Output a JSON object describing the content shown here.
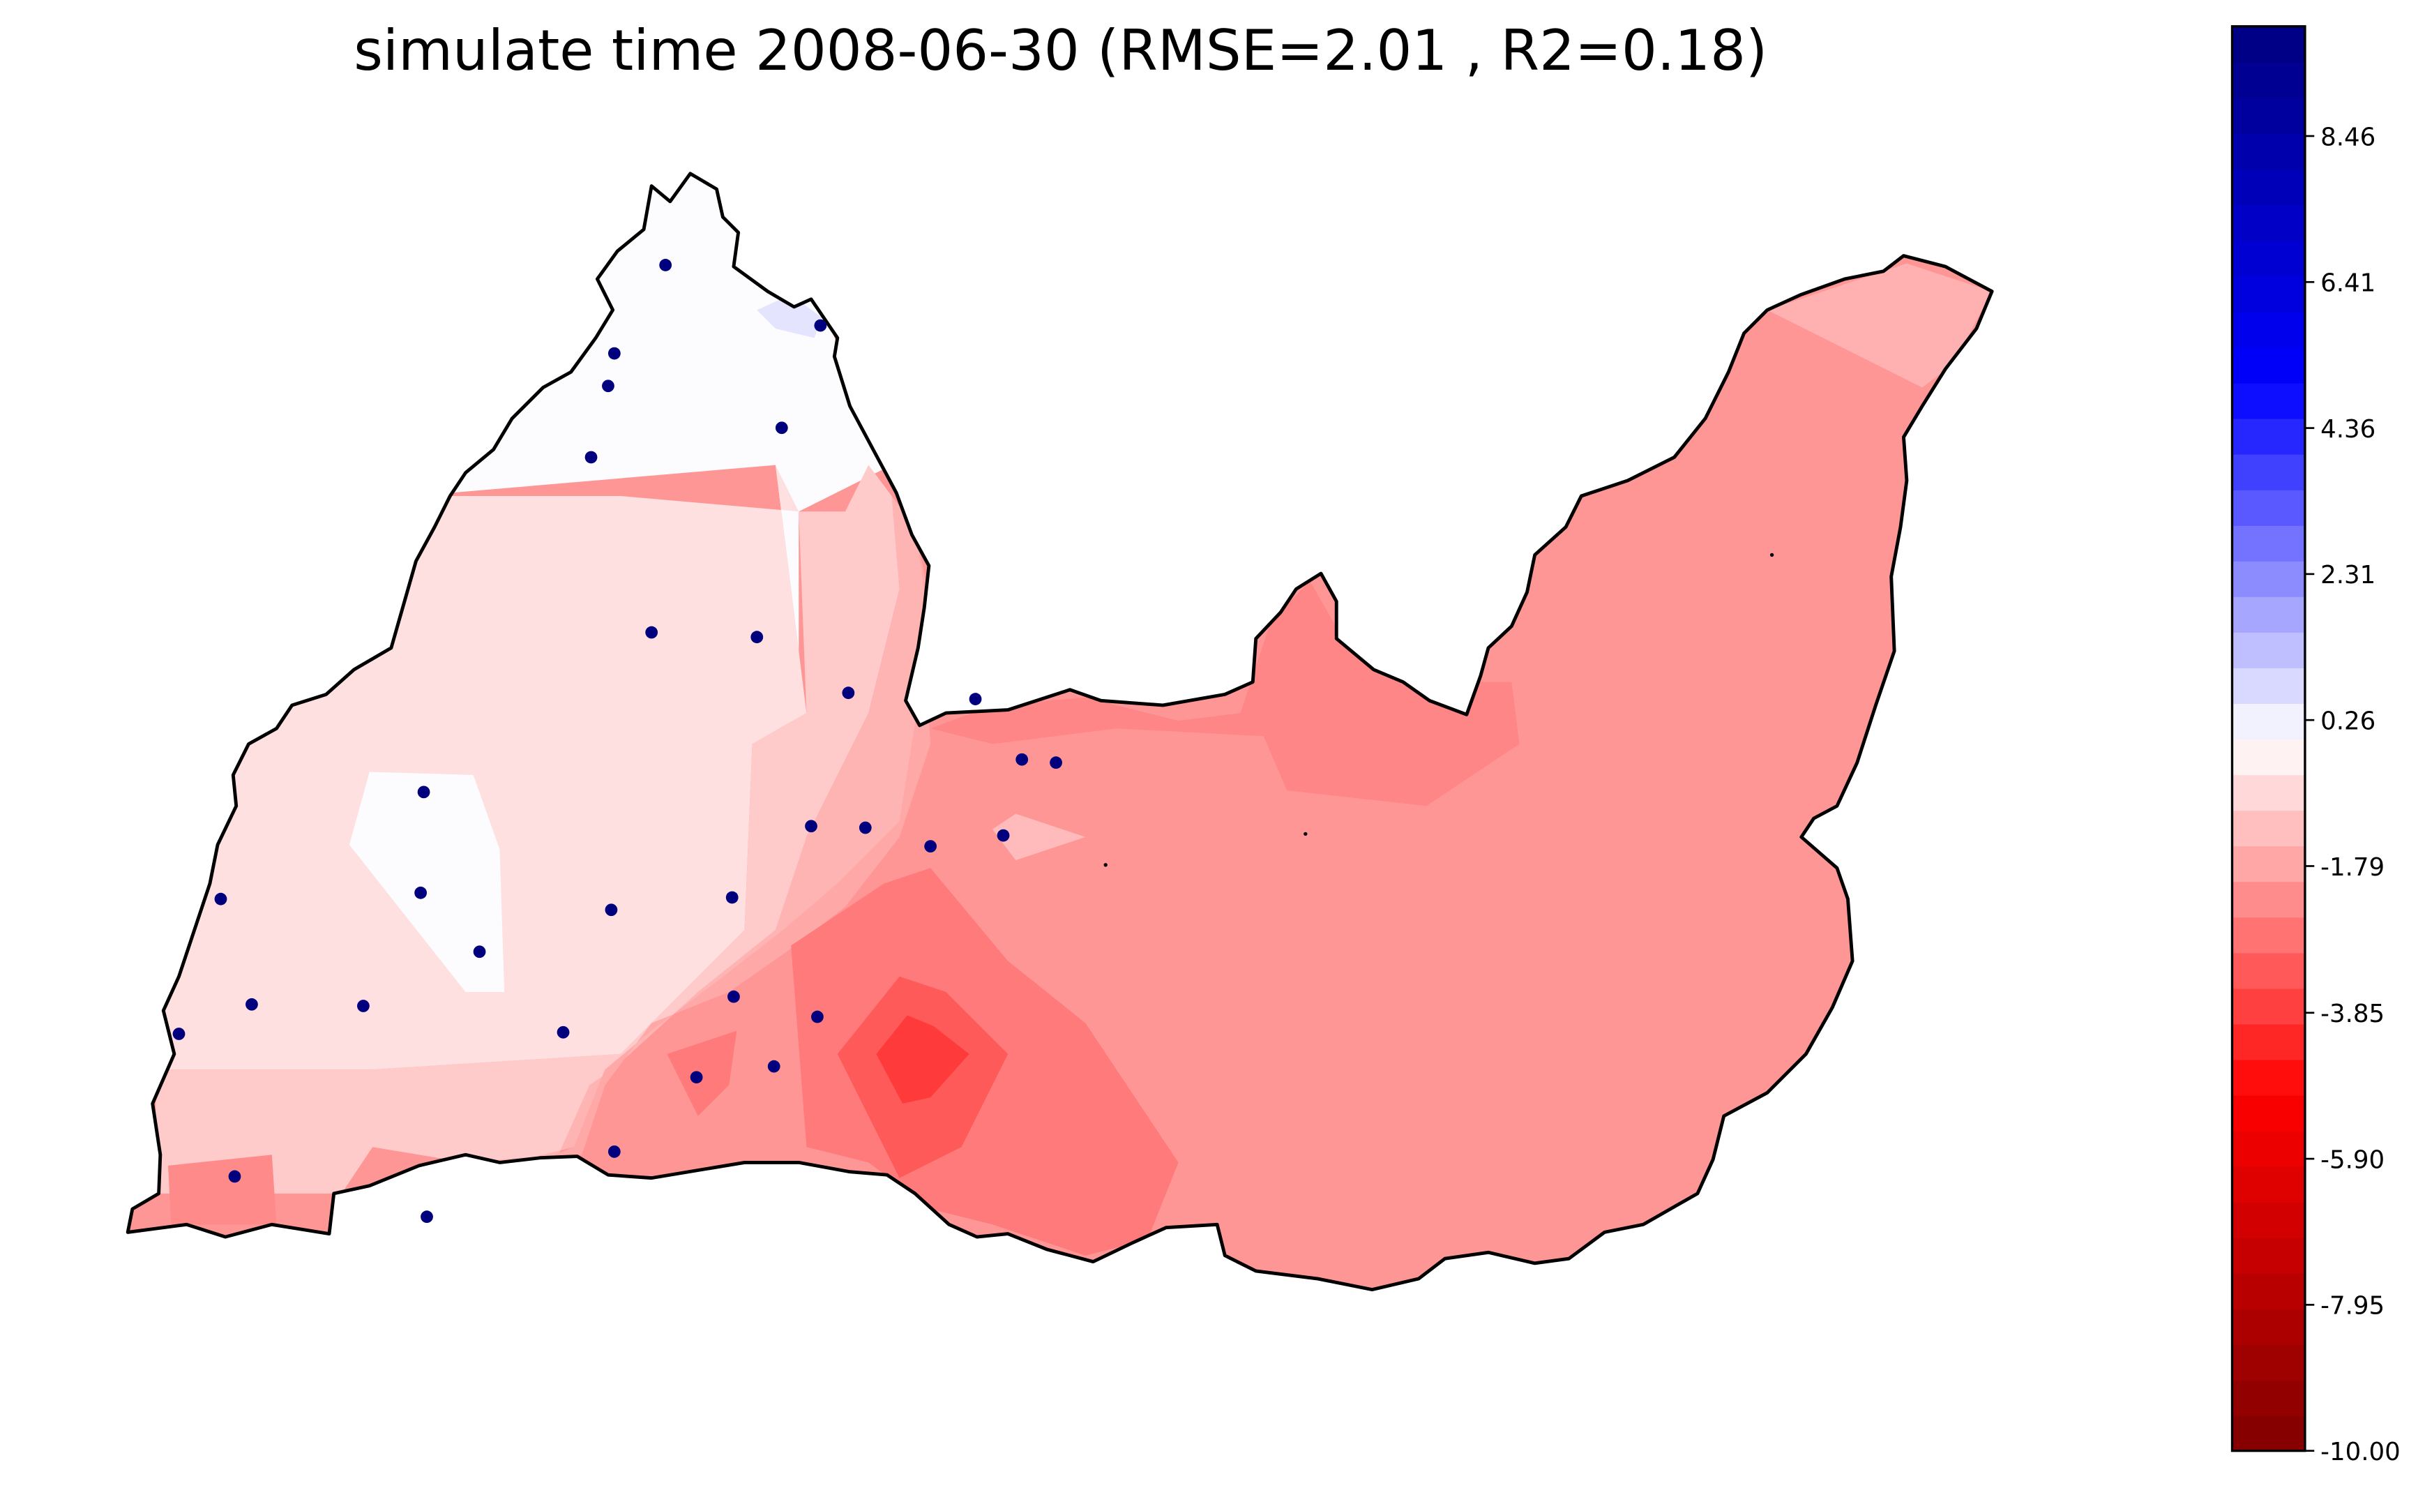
{
  "title": "simulate time 2008-06-30 (RMSE=2.01 , R2=0.18)",
  "map": {
    "station_color": "#00007f",
    "outline_color": "#000000",
    "stations": [
      {
        "id": "s1"
      },
      {
        "id": "s2"
      },
      {
        "id": "s3"
      },
      {
        "id": "s4"
      },
      {
        "id": "s5"
      },
      {
        "id": "s6"
      },
      {
        "id": "s7"
      },
      {
        "id": "s8"
      },
      {
        "id": "s9"
      },
      {
        "id": "s10"
      },
      {
        "id": "s11"
      },
      {
        "id": "s12"
      },
      {
        "id": "s13"
      },
      {
        "id": "s14"
      },
      {
        "id": "s15"
      },
      {
        "id": "s16"
      },
      {
        "id": "s17"
      },
      {
        "id": "s18"
      },
      {
        "id": "s19"
      },
      {
        "id": "s20"
      },
      {
        "id": "s21"
      },
      {
        "id": "s22"
      },
      {
        "id": "s23"
      },
      {
        "id": "s24"
      },
      {
        "id": "s25"
      },
      {
        "id": "s26"
      },
      {
        "id": "s27"
      },
      {
        "id": "s28"
      },
      {
        "id": "s29"
      },
      {
        "id": "s30"
      },
      {
        "id": "s31"
      },
      {
        "id": "s32"
      },
      {
        "id": "s33"
      },
      {
        "id": "s34"
      }
    ]
  },
  "colorbar": {
    "colormap": "seismic_r",
    "min": -10.0,
    "max": 10.0,
    "levels": 40,
    "ticks": [
      {
        "value": -10.0,
        "label": "-10.00"
      },
      {
        "value": -7.95,
        "label": "-7.95"
      },
      {
        "value": -5.9,
        "label": "-5.90"
      },
      {
        "value": -3.85,
        "label": "-3.85"
      },
      {
        "value": -1.79,
        "label": "-1.79"
      },
      {
        "value": 0.26,
        "label": "0.26"
      },
      {
        "value": 2.31,
        "label": "2.31"
      },
      {
        "value": 4.36,
        "label": "4.36"
      },
      {
        "value": 6.41,
        "label": "6.41"
      },
      {
        "value": 8.46,
        "label": "8.46"
      }
    ]
  }
}
